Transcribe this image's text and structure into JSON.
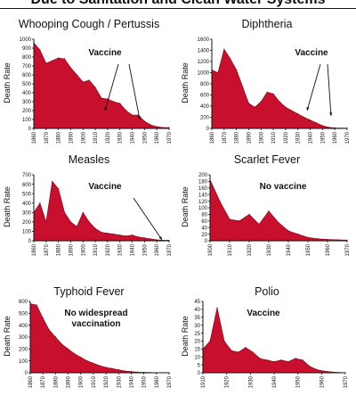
{
  "banner": {
    "title": "Due to Sanitation and Clean Water Systems"
  },
  "chart_data": [
    {
      "type": "area",
      "title": "Whooping Cough / Pertussis",
      "ylabel": "Death Rate",
      "annotation": "Vaccine",
      "xlim": [
        1860,
        1970
      ],
      "ylim": [
        0,
        1000
      ],
      "xticks": [
        1860,
        1870,
        1880,
        1890,
        1900,
        1910,
        1920,
        1930,
        1940,
        1950,
        1960,
        1970
      ],
      "yticks": [
        0,
        100,
        200,
        300,
        400,
        500,
        600,
        700,
        800,
        900,
        1000
      ],
      "x": [
        1860,
        1865,
        1870,
        1875,
        1880,
        1885,
        1890,
        1895,
        1900,
        1905,
        1910,
        1915,
        1920,
        1925,
        1930,
        1935,
        1940,
        1945,
        1950,
        1955,
        1960,
        1965,
        1970
      ],
      "values": [
        960,
        880,
        730,
        760,
        790,
        780,
        680,
        600,
        520,
        540,
        460,
        340,
        330,
        300,
        280,
        200,
        150,
        150,
        80,
        40,
        20,
        10,
        10
      ]
    },
    {
      "type": "area",
      "title": "Diphtheria",
      "ylabel": "Death Rate",
      "annotation": "Vaccine",
      "xlim": [
        1860,
        1970
      ],
      "ylim": [
        0,
        1600
      ],
      "xticks": [
        1860,
        1870,
        1880,
        1890,
        1900,
        1910,
        1920,
        1930,
        1940,
        1950,
        1960,
        1970
      ],
      "yticks": [
        0,
        200,
        400,
        600,
        800,
        1000,
        1200,
        1400,
        1600
      ],
      "x": [
        1860,
        1865,
        1870,
        1875,
        1880,
        1885,
        1890,
        1895,
        1900,
        1905,
        1910,
        1915,
        1920,
        1925,
        1930,
        1935,
        1940,
        1945,
        1950,
        1955,
        1960,
        1965,
        1970
      ],
      "values": [
        1050,
        1000,
        1420,
        1250,
        1050,
        750,
        450,
        380,
        480,
        650,
        620,
        480,
        380,
        320,
        260,
        200,
        150,
        100,
        50,
        20,
        10,
        5,
        5
      ]
    },
    {
      "type": "area",
      "title": "Measles",
      "ylabel": "Death Rate",
      "annotation": "Vaccine",
      "xlim": [
        1860,
        1970
      ],
      "ylim": [
        0,
        700
      ],
      "xticks": [
        1860,
        1870,
        1880,
        1890,
        1900,
        1910,
        1920,
        1930,
        1940,
        1950,
        1960,
        1970
      ],
      "yticks": [
        0,
        100,
        200,
        300,
        400,
        500,
        600,
        700
      ],
      "x": [
        1860,
        1865,
        1870,
        1875,
        1880,
        1885,
        1890,
        1895,
        1900,
        1905,
        1910,
        1915,
        1920,
        1925,
        1930,
        1935,
        1940,
        1945,
        1950,
        1955,
        1960,
        1965,
        1970
      ],
      "values": [
        300,
        400,
        200,
        630,
        550,
        300,
        200,
        150,
        300,
        200,
        130,
        90,
        80,
        70,
        60,
        50,
        60,
        40,
        30,
        20,
        10,
        5,
        5
      ]
    },
    {
      "type": "area",
      "title": "Scarlet Fever",
      "ylabel": "Death Rate",
      "annotation": "No vaccine",
      "xlim": [
        1900,
        1970
      ],
      "ylim": [
        0,
        200
      ],
      "xticks": [
        1900,
        1910,
        1920,
        1930,
        1940,
        1950,
        1960,
        1970
      ],
      "yticks": [
        0,
        20,
        40,
        60,
        80,
        100,
        120,
        140,
        160,
        180,
        200
      ],
      "x": [
        1900,
        1905,
        1910,
        1915,
        1920,
        1925,
        1930,
        1935,
        1940,
        1945,
        1950,
        1955,
        1960,
        1965,
        1970
      ],
      "values": [
        185,
        120,
        65,
        60,
        80,
        50,
        90,
        55,
        30,
        20,
        10,
        6,
        4,
        3,
        2
      ]
    },
    {
      "type": "area",
      "title": "Typhoid Fever",
      "ylabel": "Death Rate",
      "annotation": "No widespread vaccination",
      "annotation_lines": [
        "No widespread",
        "vaccination"
      ],
      "xlim": [
        1860,
        1970
      ],
      "ylim": [
        0,
        600
      ],
      "xticks": [
        1860,
        1870,
        1880,
        1890,
        1900,
        1910,
        1920,
        1930,
        1940,
        1950,
        1960,
        1970
      ],
      "yticks": [
        0,
        100,
        200,
        300,
        400,
        500,
        600
      ],
      "x": [
        1860,
        1865,
        1870,
        1875,
        1880,
        1885,
        1890,
        1895,
        1900,
        1905,
        1910,
        1915,
        1920,
        1925,
        1930,
        1935,
        1940,
        1945,
        1950,
        1955,
        1960,
        1965,
        1970
      ],
      "values": [
        580,
        570,
        460,
        360,
        300,
        240,
        200,
        160,
        130,
        100,
        80,
        60,
        45,
        35,
        25,
        15,
        10,
        5,
        3,
        2,
        1,
        1,
        1
      ]
    },
    {
      "type": "area",
      "title": "Polio",
      "ylabel": "Death Rate",
      "annotation": "Vaccine",
      "xlim": [
        1910,
        1970
      ],
      "ylim": [
        0,
        45
      ],
      "xticks": [
        1910,
        1920,
        1930,
        1940,
        1950,
        1960,
        1970
      ],
      "yticks": [
        0,
        5,
        10,
        15,
        20,
        25,
        30,
        35,
        40,
        45
      ],
      "x": [
        1910,
        1913,
        1916,
        1919,
        1922,
        1925,
        1928,
        1931,
        1934,
        1937,
        1940,
        1943,
        1946,
        1949,
        1952,
        1955,
        1958,
        1961,
        1964,
        1967,
        1970
      ],
      "values": [
        15,
        20,
        41,
        20,
        14,
        13,
        16,
        13,
        9,
        8,
        7,
        8,
        7,
        9,
        8,
        4,
        2,
        1,
        0.5,
        0.2,
        0.1
      ]
    }
  ]
}
